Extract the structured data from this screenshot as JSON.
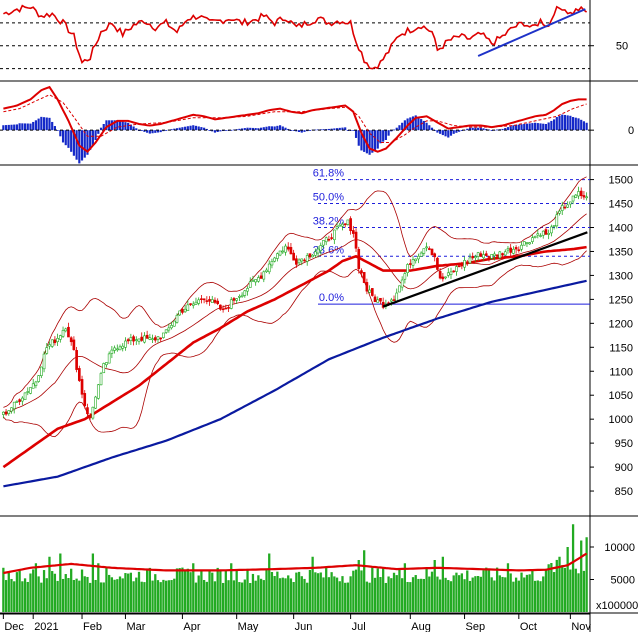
{
  "chart_data": {
    "type": "candlestick",
    "colors": {
      "up": "#22aa22",
      "down": "#dd0000",
      "ma_fast": "#dd0000",
      "ma_slow": "#0a1aa0",
      "bollinger": "#aa0000",
      "trendline": "#000000",
      "rsi_trendline": "#1e32c8",
      "fib": "#1e1edc",
      "volume_bar": "#22aa22",
      "volume_ma": "#dd0000",
      "macd_hist": "#1428c8",
      "grid": "#000000"
    },
    "x_labels": [
      {
        "label": "Dec",
        "index": 0
      },
      {
        "label": "2021",
        "index": 11
      },
      {
        "label": "Feb",
        "index": 29
      },
      {
        "label": "Mar",
        "index": 45
      },
      {
        "label": "Apr",
        "index": 66
      },
      {
        "label": "May",
        "index": 86
      },
      {
        "label": "Jun",
        "index": 107
      },
      {
        "label": "Jul",
        "index": 128
      },
      {
        "label": "Aug",
        "index": 150
      },
      {
        "label": "Sep",
        "index": 170
      },
      {
        "label": "Oct",
        "index": 190
      },
      {
        "label": "Nov",
        "index": 209
      }
    ],
    "num_sessions": 216,
    "price_key_points": [
      [
        0,
        1010
      ],
      [
        4,
        1030
      ],
      [
        8,
        1055
      ],
      [
        12,
        1080
      ],
      [
        16,
        1150
      ],
      [
        20,
        1170
      ],
      [
        23,
        1195
      ],
      [
        26,
        1140
      ],
      [
        28,
        1080
      ],
      [
        30,
        1030
      ],
      [
        32,
        1000
      ],
      [
        34,
        1050
      ],
      [
        37,
        1110
      ],
      [
        41,
        1150
      ],
      [
        45,
        1160
      ],
      [
        50,
        1170
      ],
      [
        55,
        1165
      ],
      [
        60,
        1180
      ],
      [
        65,
        1225
      ],
      [
        70,
        1240
      ],
      [
        74,
        1255
      ],
      [
        78,
        1240
      ],
      [
        81,
        1225
      ],
      [
        85,
        1250
      ],
      [
        90,
        1275
      ],
      [
        95,
        1300
      ],
      [
        100,
        1340
      ],
      [
        104,
        1360
      ],
      [
        108,
        1330
      ],
      [
        112,
        1340
      ],
      [
        117,
        1360
      ],
      [
        120,
        1380
      ],
      [
        124,
        1400
      ],
      [
        127,
        1410
      ],
      [
        129,
        1390
      ],
      [
        131,
        1320
      ],
      [
        134,
        1270
      ],
      [
        137,
        1250
      ],
      [
        140,
        1240
      ],
      [
        144,
        1255
      ],
      [
        147,
        1290
      ],
      [
        150,
        1330
      ],
      [
        153,
        1345
      ],
      [
        156,
        1365
      ],
      [
        159,
        1340
      ],
      [
        161,
        1290
      ],
      [
        164,
        1300
      ],
      [
        168,
        1320
      ],
      [
        172,
        1335
      ],
      [
        176,
        1345
      ],
      [
        180,
        1340
      ],
      [
        185,
        1350
      ],
      [
        190,
        1360
      ],
      [
        194,
        1375
      ],
      [
        198,
        1390
      ],
      [
        201,
        1385
      ],
      [
        203,
        1410
      ],
      [
        206,
        1440
      ],
      [
        208,
        1450
      ],
      [
        210,
        1460
      ],
      [
        212,
        1470
      ],
      [
        214,
        1465
      ],
      [
        215,
        1460
      ]
    ],
    "price_axis": {
      "ticks": [
        850,
        900,
        950,
        1000,
        1050,
        1100,
        1150,
        1200,
        1250,
        1300,
        1350,
        1400,
        1450,
        1500
      ],
      "min": 800,
      "max": 1520
    },
    "ma_slow": [
      [
        0,
        860
      ],
      [
        20,
        880
      ],
      [
        40,
        920
      ],
      [
        60,
        955
      ],
      [
        80,
        1000
      ],
      [
        100,
        1060
      ],
      [
        120,
        1125
      ],
      [
        140,
        1170
      ],
      [
        160,
        1210
      ],
      [
        180,
        1245
      ],
      [
        200,
        1270
      ],
      [
        216,
        1290
      ]
    ],
    "ma_fast": [
      [
        0,
        900
      ],
      [
        10,
        940
      ],
      [
        20,
        980
      ],
      [
        30,
        1000
      ],
      [
        40,
        1035
      ],
      [
        50,
        1070
      ],
      [
        60,
        1115
      ],
      [
        70,
        1160
      ],
      [
        80,
        1190
      ],
      [
        90,
        1225
      ],
      [
        100,
        1250
      ],
      [
        110,
        1280
      ],
      [
        120,
        1310
      ],
      [
        125,
        1330
      ],
      [
        130,
        1340
      ],
      [
        140,
        1310
      ],
      [
        150,
        1310
      ],
      [
        160,
        1320
      ],
      [
        170,
        1325
      ],
      [
        180,
        1335
      ],
      [
        190,
        1340
      ],
      [
        200,
        1350
      ],
      [
        210,
        1355
      ],
      [
        216,
        1360
      ]
    ],
    "fib_levels": [
      {
        "label": "61.8%",
        "value": 1500
      },
      {
        "label": "50.0%",
        "value": 1450
      },
      {
        "label": "38.2%",
        "value": 1400
      },
      {
        "label": "23.6%",
        "value": 1340
      },
      {
        "label": "0.0%",
        "value": 1240
      }
    ],
    "trendline": [
      [
        140,
        1235
      ],
      [
        216,
        1390
      ]
    ],
    "rsi": {
      "ticks": [
        {
          "value": 50,
          "label": "50"
        }
      ],
      "levels": [
        70,
        50,
        30
      ],
      "min": 20,
      "max": 90,
      "key_points": [
        [
          0,
          78
        ],
        [
          5,
          82
        ],
        [
          10,
          84
        ],
        [
          14,
          76
        ],
        [
          18,
          78
        ],
        [
          22,
          70
        ],
        [
          26,
          58
        ],
        [
          29,
          35
        ],
        [
          32,
          40
        ],
        [
          36,
          62
        ],
        [
          40,
          70
        ],
        [
          44,
          60
        ],
        [
          48,
          68
        ],
        [
          52,
          72
        ],
        [
          56,
          66
        ],
        [
          60,
          70
        ],
        [
          64,
          62
        ],
        [
          68,
          74
        ],
        [
          72,
          76
        ],
        [
          76,
          70
        ],
        [
          80,
          72
        ],
        [
          84,
          74
        ],
        [
          88,
          70
        ],
        [
          92,
          72
        ],
        [
          96,
          76
        ],
        [
          100,
          70
        ],
        [
          104,
          75
        ],
        [
          108,
          66
        ],
        [
          112,
          70
        ],
        [
          116,
          74
        ],
        [
          120,
          70
        ],
        [
          124,
          72
        ],
        [
          128,
          70
        ],
        [
          130,
          55
        ],
        [
          133,
          38
        ],
        [
          136,
          30
        ],
        [
          139,
          35
        ],
        [
          142,
          45
        ],
        [
          146,
          60
        ],
        [
          150,
          64
        ],
        [
          154,
          68
        ],
        [
          158,
          62
        ],
        [
          160,
          46
        ],
        [
          164,
          54
        ],
        [
          168,
          58
        ],
        [
          172,
          56
        ],
        [
          176,
          60
        ],
        [
          180,
          52
        ],
        [
          184,
          58
        ],
        [
          188,
          66
        ],
        [
          192,
          70
        ],
        [
          195,
          65
        ],
        [
          198,
          72
        ],
        [
          201,
          67
        ],
        [
          203,
          80
        ],
        [
          206,
          84
        ],
        [
          209,
          78
        ],
        [
          212,
          82
        ],
        [
          215,
          80
        ]
      ],
      "trendline": [
        [
          175,
          41
        ],
        [
          216,
          82
        ]
      ]
    },
    "macd": {
      "ticks": [
        {
          "value": 0,
          "label": "0"
        }
      ],
      "min": -22,
      "max": 30,
      "macd_points": [
        [
          0,
          14
        ],
        [
          5,
          16
        ],
        [
          10,
          20
        ],
        [
          14,
          26
        ],
        [
          17,
          28
        ],
        [
          20,
          20
        ],
        [
          24,
          6
        ],
        [
          28,
          -10
        ],
        [
          31,
          -14
        ],
        [
          34,
          -8
        ],
        [
          38,
          2
        ],
        [
          42,
          6
        ],
        [
          46,
          6
        ],
        [
          50,
          4
        ],
        [
          54,
          3
        ],
        [
          58,
          4
        ],
        [
          62,
          6
        ],
        [
          66,
          8
        ],
        [
          70,
          10
        ],
        [
          74,
          9
        ],
        [
          78,
          7
        ],
        [
          82,
          8
        ],
        [
          86,
          9
        ],
        [
          90,
          10
        ],
        [
          94,
          11
        ],
        [
          98,
          13
        ],
        [
          102,
          14
        ],
        [
          106,
          12
        ],
        [
          110,
          11
        ],
        [
          114,
          13
        ],
        [
          118,
          14
        ],
        [
          122,
          15
        ],
        [
          126,
          16
        ],
        [
          129,
          12
        ],
        [
          132,
          -2
        ],
        [
          135,
          -12
        ],
        [
          138,
          -14
        ],
        [
          141,
          -12
        ],
        [
          145,
          -5
        ],
        [
          149,
          3
        ],
        [
          152,
          8
        ],
        [
          156,
          9
        ],
        [
          160,
          5
        ],
        [
          164,
          1
        ],
        [
          168,
          2
        ],
        [
          172,
          3
        ],
        [
          176,
          3
        ],
        [
          180,
          2
        ],
        [
          184,
          3
        ],
        [
          188,
          5
        ],
        [
          192,
          7
        ],
        [
          196,
          9
        ],
        [
          200,
          10
        ],
        [
          203,
          13
        ],
        [
          206,
          17
        ],
        [
          209,
          19
        ],
        [
          212,
          20
        ],
        [
          215,
          20
        ]
      ],
      "signal_points": [
        [
          0,
          12
        ],
        [
          6,
          14
        ],
        [
          12,
          19
        ],
        [
          17,
          23
        ],
        [
          22,
          18
        ],
        [
          27,
          6
        ],
        [
          31,
          -4
        ],
        [
          36,
          -4
        ],
        [
          42,
          2
        ],
        [
          50,
          4
        ],
        [
          60,
          5
        ],
        [
          70,
          8
        ],
        [
          80,
          8
        ],
        [
          90,
          9
        ],
        [
          100,
          12
        ],
        [
          110,
          12
        ],
        [
          120,
          14
        ],
        [
          127,
          15
        ],
        [
          131,
          9
        ],
        [
          135,
          -2
        ],
        [
          139,
          -8
        ],
        [
          143,
          -8
        ],
        [
          148,
          -3
        ],
        [
          152,
          2
        ],
        [
          156,
          6
        ],
        [
          160,
          6
        ],
        [
          166,
          3
        ],
        [
          172,
          2
        ],
        [
          180,
          2
        ],
        [
          188,
          3
        ],
        [
          196,
          6
        ],
        [
          204,
          9
        ],
        [
          210,
          14
        ],
        [
          215,
          17
        ]
      ]
    },
    "volume": {
      "ticks": [
        {
          "value": 5000,
          "label": "5000"
        },
        {
          "value": 10000,
          "label": "10000"
        }
      ],
      "unit": "x100000",
      "min": 0,
      "max": 14000,
      "base": 5300,
      "spikes": [
        [
          12,
          7500
        ],
        [
          17,
          8500
        ],
        [
          21,
          9000
        ],
        [
          33,
          9000
        ],
        [
          35,
          7500
        ],
        [
          70,
          7500
        ],
        [
          84,
          7500
        ],
        [
          98,
          9000
        ],
        [
          114,
          8500
        ],
        [
          131,
          8000
        ],
        [
          133,
          9500
        ],
        [
          148,
          7500
        ],
        [
          159,
          8000
        ],
        [
          162,
          8500
        ],
        [
          186,
          7500
        ],
        [
          205,
          8500
        ],
        [
          208,
          10000
        ],
        [
          210,
          13500
        ],
        [
          213,
          11000
        ],
        [
          215,
          11500
        ]
      ],
      "ma_points": [
        [
          0,
          6000
        ],
        [
          10,
          6800
        ],
        [
          25,
          7400
        ],
        [
          40,
          6800
        ],
        [
          60,
          6400
        ],
        [
          80,
          6400
        ],
        [
          100,
          6600
        ],
        [
          115,
          6800
        ],
        [
          130,
          7200
        ],
        [
          145,
          6600
        ],
        [
          160,
          6800
        ],
        [
          175,
          6600
        ],
        [
          190,
          6400
        ],
        [
          200,
          6500
        ],
        [
          208,
          7200
        ],
        [
          212,
          8200
        ],
        [
          215,
          9000
        ]
      ]
    }
  }
}
